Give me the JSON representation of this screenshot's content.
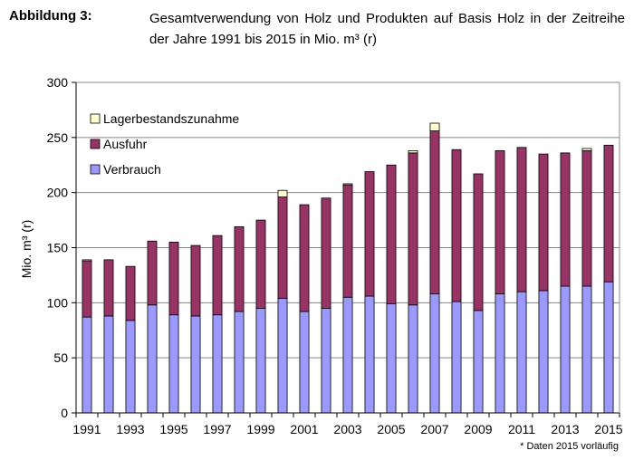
{
  "header": {
    "figure_label": "Abbildung 3:",
    "caption": "Gesamtverwendung von Holz und Produkten auf Basis Holz in der Zeitreihe der Jahre 1991 bis 2015 in Mio. m³ (r)"
  },
  "footnote": "* Daten 2015 vorläufig",
  "chart_data": {
    "type": "bar",
    "stacked": true,
    "categories": [
      "1991",
      "1992",
      "1993",
      "1994",
      "1995",
      "1996",
      "1997",
      "1998",
      "1999",
      "2000",
      "2001",
      "2002",
      "2003",
      "2004",
      "2005",
      "2006",
      "2007",
      "2008",
      "2009",
      "2010",
      "2011",
      "2012",
      "2013",
      "2014",
      "2015"
    ],
    "x_tick_labels": [
      "1991",
      "1993",
      "1995",
      "1997",
      "1999",
      "2001",
      "2003",
      "2005",
      "2007",
      "2009",
      "2011",
      "2013",
      "2015"
    ],
    "series": [
      {
        "name": "Verbrauch",
        "color": "#9999ff",
        "values": [
          87,
          88,
          84,
          98,
          89,
          88,
          89,
          92,
          95,
          104,
          92,
          95,
          105,
          106,
          99,
          98,
          108,
          101,
          93,
          108,
          110,
          111,
          115,
          115,
          119
        ]
      },
      {
        "name": "Ausfuhr",
        "color": "#993366",
        "values": [
          51,
          51,
          49,
          58,
          66,
          64,
          72,
          77,
          80,
          92,
          97,
          100,
          102,
          113,
          126,
          138,
          148,
          138,
          124,
          130,
          131,
          124,
          121,
          123,
          124
        ]
      },
      {
        "name": "Lagerbestandszunahme",
        "color": "#ffffcc",
        "values": [
          1,
          0,
          0,
          0,
          0,
          0,
          0,
          0,
          0,
          6,
          0,
          0,
          1,
          0,
          0,
          2,
          7,
          0,
          0,
          0,
          0,
          0,
          0,
          2,
          0
        ]
      }
    ],
    "legend_order": [
      "Lagerbestandszunahme",
      "Ausfuhr",
      "Verbrauch"
    ],
    "legend_position": "top-left",
    "ylabel": "Mio. m³ (r)",
    "xlabel": "",
    "ylim": [
      0,
      300
    ],
    "yticks": [
      0,
      50,
      100,
      150,
      200,
      250,
      300
    ],
    "grid": "horizontal"
  }
}
